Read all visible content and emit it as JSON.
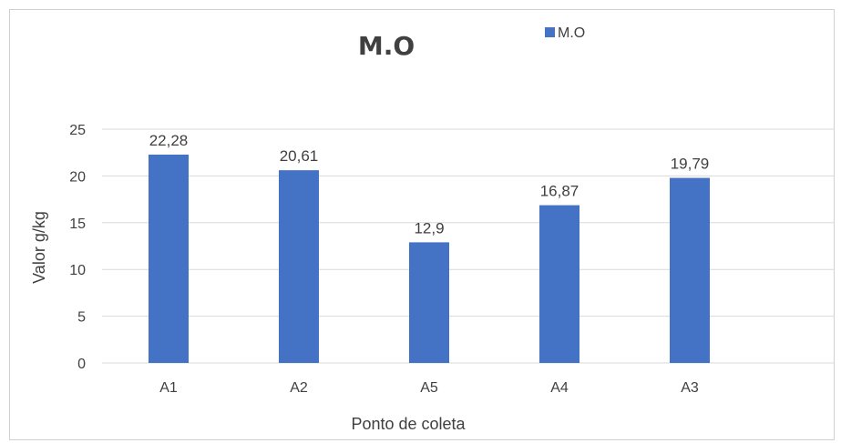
{
  "chart_data": {
    "type": "bar",
    "title": "M.O",
    "xlabel": "Ponto de coleta",
    "ylabel": "Valor g/kg",
    "categories": [
      "A1",
      "A2",
      "A5",
      "A4",
      "A3"
    ],
    "series": [
      {
        "name": "M.O",
        "values": [
          22.28,
          20.61,
          12.9,
          16.87,
          19.79
        ],
        "labels": [
          "22,28",
          "20,61",
          "12,9",
          "16,87",
          "19,79"
        ],
        "color": "#4472c4"
      }
    ],
    "ylim": [
      0,
      25
    ],
    "yticks": [
      "0",
      "5",
      "10",
      "15",
      "20",
      "25"
    ],
    "grid": true,
    "legend_position": "top-right"
  }
}
